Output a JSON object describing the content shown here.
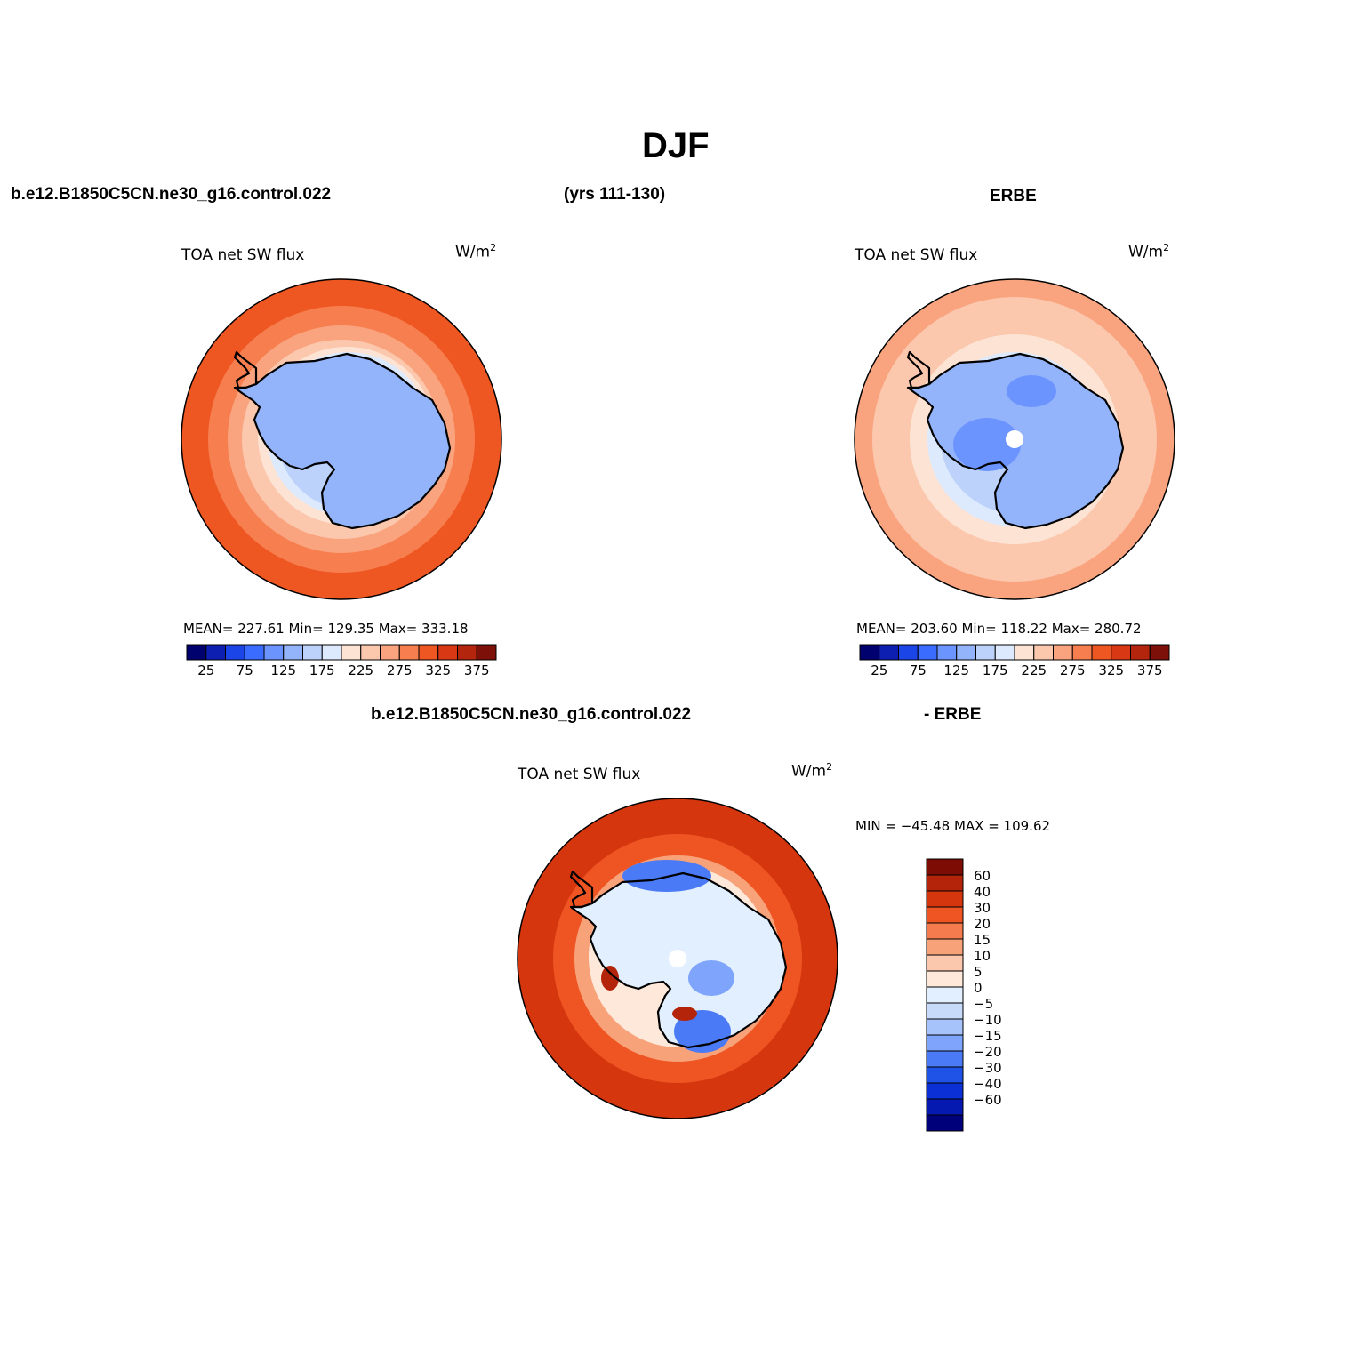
{
  "page": {
    "title": "DJF",
    "case_name": "b.e12.B1850C5CN.ne30_g16.control.022",
    "years": "(yrs 111-130)",
    "obs_name": "ERBE",
    "diff_case_name": "b.e12.B1850C5CN.ne30_g16.control.022",
    "diff_obs_name": "- ERBE"
  },
  "panels": {
    "model": {
      "var_label": "TOA net SW flux",
      "units_base": "W/m",
      "units_exp": "2",
      "stats": "MEAN= 227.61   Min= 129.35   Max= 333.18"
    },
    "obs": {
      "var_label": "TOA net SW flux",
      "units_base": "W/m",
      "units_exp": "2",
      "stats": "MEAN= 203.60   Min= 118.22   Max= 280.72"
    },
    "diff": {
      "var_label": "TOA net SW flux",
      "units_base": "W/m",
      "units_exp": "2",
      "stats": "MIN = −45.48  MAX = 109.62"
    }
  },
  "colorbar_abs": {
    "colors": [
      "#00006e",
      "#0d1fb0",
      "#1c45e8",
      "#3a6cff",
      "#6b94ff",
      "#93b4fa",
      "#bcd2fb",
      "#ddeafd",
      "#fde3d3",
      "#fbc7ad",
      "#f9a47e",
      "#f67e4f",
      "#ee5622",
      "#d83914",
      "#b3260d",
      "#7d1008"
    ],
    "tick_labels": [
      "25",
      "75",
      "125",
      "175",
      "225",
      "275",
      "325",
      "375"
    ]
  },
  "colorbar_diff": {
    "colors": [
      "#7d0c05",
      "#b3240b",
      "#d6360e",
      "#ee5523",
      "#f47b4e",
      "#f8a27a",
      "#fbc8ad",
      "#fde8da",
      "#e2efff",
      "#c7daf9",
      "#a7c3fb",
      "#7fa4fb",
      "#4a7af6",
      "#1f53e8",
      "#0b30d6",
      "#0518b0",
      "#00007a"
    ],
    "tick_labels": [
      "60",
      "40",
      "30",
      "20",
      "15",
      "10",
      "5",
      "0",
      "−5",
      "−10",
      "−15",
      "−20",
      "−30",
      "−40",
      "−60"
    ]
  },
  "chart_data": [
    {
      "type": "heatmap",
      "title": "TOA net SW flux",
      "projection": "south-polar-stereographic",
      "units": "W/m2",
      "mean": 227.61,
      "min": 129.35,
      "max": 333.18,
      "levels": [
        25,
        50,
        75,
        100,
        125,
        150,
        175,
        200,
        225,
        250,
        275,
        300,
        325,
        350,
        375
      ]
    },
    {
      "type": "heatmap",
      "title": "TOA net SW flux",
      "projection": "south-polar-stereographic",
      "units": "W/m2",
      "mean": 203.6,
      "min": 118.22,
      "max": 280.72,
      "levels": [
        25,
        50,
        75,
        100,
        125,
        150,
        175,
        200,
        225,
        250,
        275,
        300,
        325,
        350,
        375
      ]
    },
    {
      "type": "heatmap",
      "title": "TOA net SW flux",
      "projection": "south-polar-stereographic",
      "units": "W/m2",
      "min": -45.48,
      "max": 109.62,
      "levels": [
        -60,
        -40,
        -30,
        -20,
        -15,
        -10,
        -5,
        0,
        5,
        10,
        15,
        20,
        30,
        40,
        60
      ]
    }
  ]
}
